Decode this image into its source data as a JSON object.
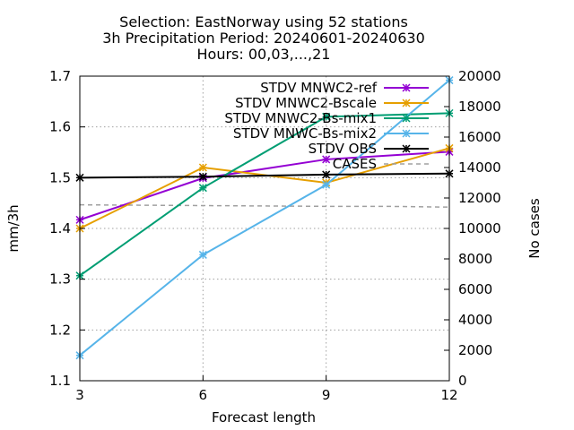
{
  "chart_data": {
    "type": "line",
    "title_lines": [
      "Selection: EastNorway using    52 stations",
      "3h Precipitation   Period: 20240601-20240630",
      "Hours: 00,03,...,21"
    ],
    "xlabel": "Forecast length",
    "ylabel": "mm/3h",
    "y2label": "No cases",
    "x": [
      3,
      6,
      9,
      12
    ],
    "xlim": [
      3,
      12
    ],
    "ylim": [
      1.1,
      1.7
    ],
    "y2lim": [
      0,
      20000
    ],
    "yticks": [
      "1.1",
      "1.2",
      "1.3",
      "1.4",
      "1.5",
      "1.6",
      "1.7"
    ],
    "y2ticks": [
      "0",
      "2000",
      "4000",
      "6000",
      "8000",
      "10000",
      "12000",
      "14000",
      "16000",
      "18000",
      "20000"
    ],
    "xticks": [
      "3",
      "6",
      "9",
      "12"
    ],
    "grid": true,
    "legend_position": "top-right",
    "series": [
      {
        "name": "STDV MNWC2-ref",
        "color": "#9400d3",
        "marker": "x",
        "values": [
          1.417,
          1.499,
          1.536,
          1.551
        ]
      },
      {
        "name": "STDV MNWC2-Bscale",
        "color": "#e69f00",
        "marker": "x",
        "values": [
          1.4,
          1.52,
          1.49,
          1.558
        ]
      },
      {
        "name": "STDV MNWC2-Bs-mix1",
        "color": "#009e73",
        "marker": "x",
        "values": [
          1.307,
          1.48,
          1.62,
          1.627
        ]
      },
      {
        "name": "STDV MNWC-Bs-mix2",
        "color": "#56b4e9",
        "marker": "x",
        "values": [
          1.15,
          1.348,
          1.486,
          1.692
        ]
      },
      {
        "name": "STDV OBS",
        "color": "#000000",
        "marker": "x",
        "values": [
          1.5,
          1.502,
          1.506,
          1.508
        ]
      }
    ],
    "cases": {
      "name": "CASES",
      "color": "#a0a0a0",
      "axis": "y2",
      "x": [
        3,
        6,
        9,
        10.5,
        12
      ],
      "values": [
        11550,
        11500,
        11450,
        11450,
        11400
      ]
    }
  }
}
